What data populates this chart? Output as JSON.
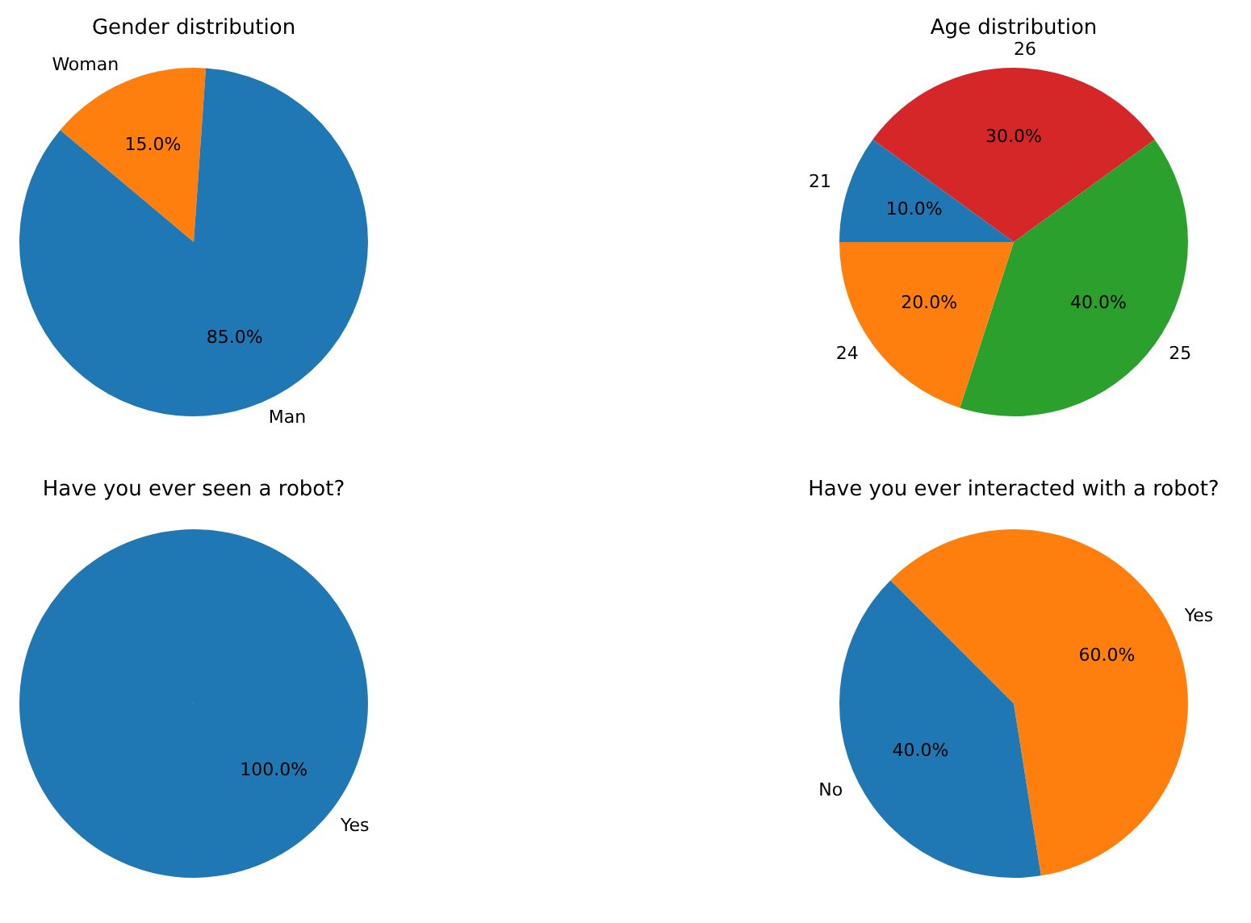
{
  "chart_data": [
    {
      "type": "pie",
      "title": "Gender distribution",
      "categories": [
        "Man",
        "Woman"
      ],
      "values": [
        85,
        15
      ],
      "colors": [
        "#1f77b4",
        "#ff7f0e"
      ],
      "value_labels": [
        "85.0%",
        "15.0%"
      ]
    },
    {
      "type": "pie",
      "title": "Age distribution",
      "categories": [
        "21",
        "24",
        "25",
        "26"
      ],
      "values": [
        10,
        20,
        40,
        30
      ],
      "colors": [
        "#1f77b4",
        "#ff7f0e",
        "#2ca02c",
        "#d62728"
      ],
      "value_labels": [
        "10.0%",
        "20.0%",
        "40.0%",
        "30.0%"
      ]
    },
    {
      "type": "pie",
      "title": "Have you ever seen a robot?",
      "categories": [
        "Yes"
      ],
      "values": [
        100
      ],
      "colors": [
        "#1f77b4"
      ],
      "value_labels": [
        "100.0%"
      ]
    },
    {
      "type": "pie",
      "title": "Have you ever interacted with a robot?",
      "categories": [
        "No",
        "Yes"
      ],
      "values": [
        40,
        60
      ],
      "colors": [
        "#1f77b4",
        "#ff7f0e"
      ],
      "value_labels": [
        "40.0%",
        "60.0%"
      ]
    }
  ]
}
